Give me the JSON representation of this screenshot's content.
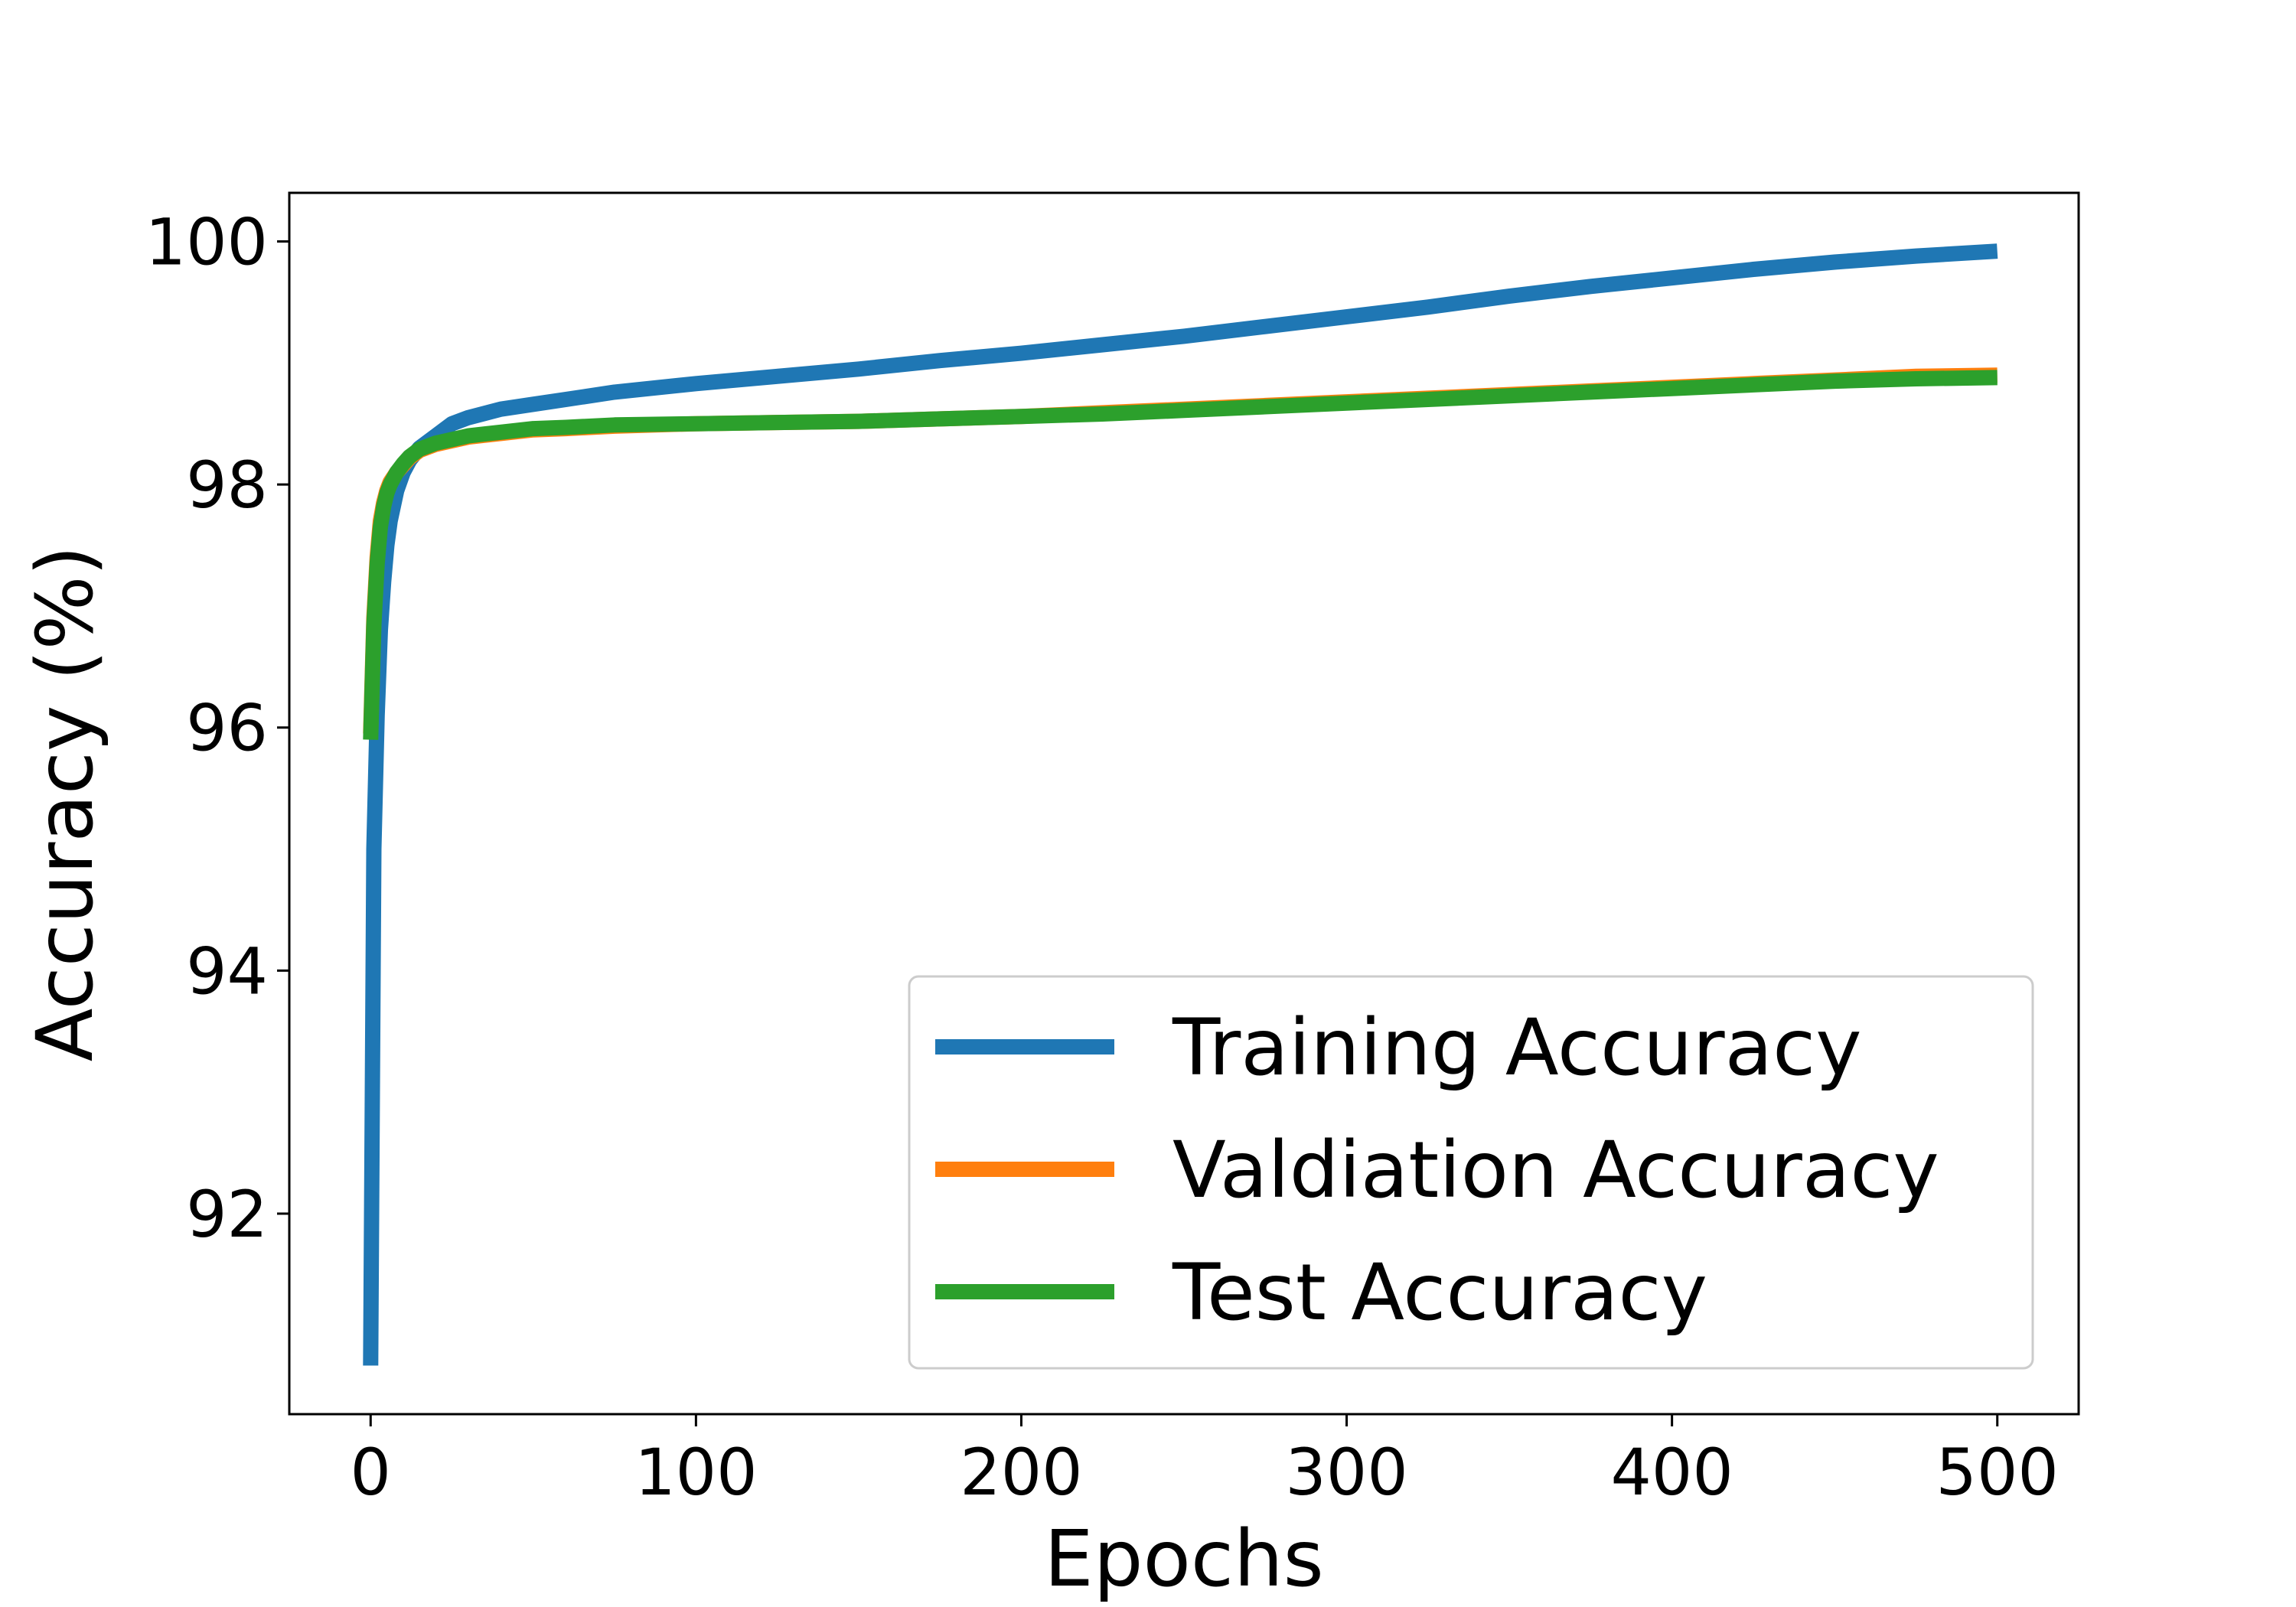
{
  "chart_data": {
    "type": "line",
    "title": "",
    "xlabel": "Epochs",
    "ylabel": "Accuracy (%)",
    "xlim": [
      -25,
      525
    ],
    "ylim": [
      90.35,
      100.4
    ],
    "xticks": [
      0,
      100,
      200,
      300,
      400,
      500
    ],
    "yticks": [
      92,
      94,
      96,
      98,
      100
    ],
    "grid": false,
    "legend_position": "lower-right",
    "series": [
      {
        "name": "Training Accuracy",
        "color": "#1f77b4",
        "x": [
          0,
          1,
          2,
          3,
          4,
          5,
          6,
          8,
          10,
          12,
          15,
          20,
          25,
          30,
          40,
          50,
          60,
          75,
          100,
          125,
          150,
          175,
          200,
          225,
          250,
          275,
          300,
          325,
          350,
          375,
          400,
          425,
          450,
          475,
          500
        ],
        "y": [
          90.75,
          95.0,
          96.1,
          96.8,
          97.2,
          97.5,
          97.7,
          97.95,
          98.1,
          98.2,
          98.3,
          98.4,
          98.5,
          98.55,
          98.62,
          98.66,
          98.7,
          98.76,
          98.83,
          98.89,
          98.95,
          99.02,
          99.08,
          99.15,
          99.22,
          99.3,
          99.38,
          99.46,
          99.55,
          99.63,
          99.7,
          99.77,
          99.83,
          99.88,
          99.92
        ]
      },
      {
        "name": "Valdiation Accuracy",
        "color": "#ff7f0e",
        "x": [
          0,
          1,
          2,
          3,
          4,
          5,
          6,
          8,
          10,
          12,
          15,
          20,
          25,
          30,
          40,
          50,
          60,
          75,
          100,
          125,
          150,
          175,
          200,
          225,
          250,
          275,
          300,
          325,
          350,
          375,
          400,
          425,
          450,
          475,
          500
        ],
        "y": [
          95.95,
          96.9,
          97.4,
          97.7,
          97.85,
          97.95,
          98.02,
          98.1,
          98.16,
          98.22,
          98.28,
          98.33,
          98.36,
          98.39,
          98.42,
          98.45,
          98.46,
          98.48,
          98.5,
          98.51,
          98.52,
          98.54,
          98.56,
          98.59,
          98.62,
          98.65,
          98.68,
          98.71,
          98.74,
          98.77,
          98.8,
          98.83,
          98.86,
          98.89,
          98.9
        ]
      },
      {
        "name": "Test Accuracy",
        "color": "#2ca02c",
        "x": [
          0,
          1,
          2,
          3,
          4,
          5,
          6,
          8,
          10,
          12,
          15,
          20,
          25,
          30,
          40,
          50,
          60,
          75,
          100,
          125,
          150,
          175,
          200,
          225,
          250,
          275,
          300,
          325,
          350,
          375,
          400,
          425,
          450,
          475,
          500
        ],
        "y": [
          95.9,
          96.85,
          97.35,
          97.65,
          97.82,
          97.93,
          98.0,
          98.1,
          98.17,
          98.23,
          98.29,
          98.34,
          98.37,
          98.4,
          98.43,
          98.46,
          98.47,
          98.49,
          98.5,
          98.51,
          98.52,
          98.54,
          98.56,
          98.58,
          98.61,
          98.64,
          98.67,
          98.7,
          98.73,
          98.76,
          98.79,
          98.82,
          98.85,
          98.87,
          98.88
        ]
      }
    ]
  }
}
